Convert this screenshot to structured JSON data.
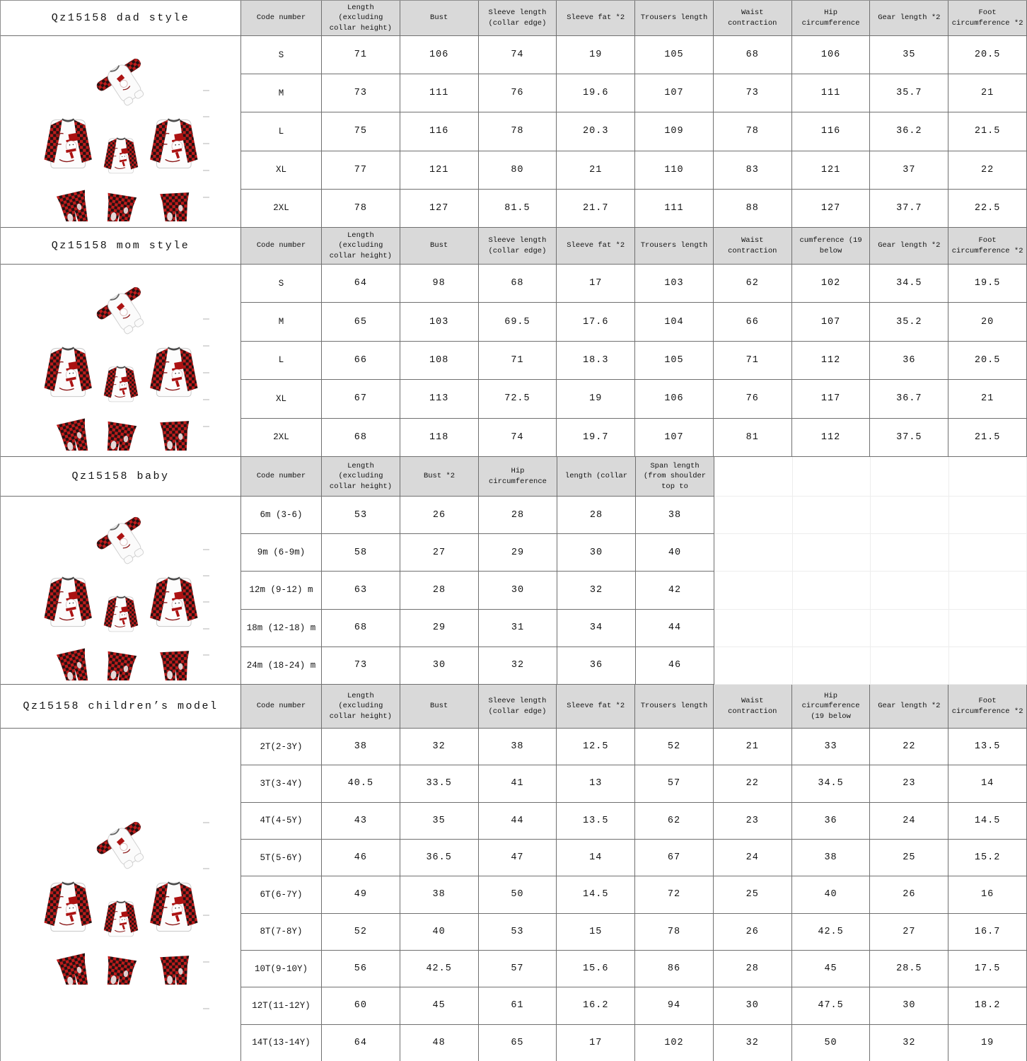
{
  "sections": [
    {
      "id": "dad",
      "title": "Qz15158 dad style",
      "columns": [
        "Code number",
        "Length (excluding collar height)",
        "Bust",
        "Sleeve length (collar edge)",
        "Sleeve fat *2",
        "Trousers length",
        "Waist contraction",
        "Hip circumference",
        "Gear length *2",
        "Foot circumference *2"
      ],
      "rows": [
        [
          "S",
          "71",
          "106",
          "74",
          "19",
          "105",
          "68",
          "106",
          "35",
          "20.5"
        ],
        [
          "M",
          "73",
          "111",
          "76",
          "19.6",
          "107",
          "73",
          "111",
          "35.7",
          "21"
        ],
        [
          "L",
          "75",
          "116",
          "78",
          "20.3",
          "109",
          "78",
          "116",
          "36.2",
          "21.5"
        ],
        [
          "XL",
          "77",
          "121",
          "80",
          "21",
          "110",
          "83",
          "121",
          "37",
          "22"
        ],
        [
          "2XL",
          "78",
          "127",
          "81.5",
          "21.7",
          "111",
          "88",
          "127",
          "37.7",
          "22.5"
        ]
      ]
    },
    {
      "id": "mom",
      "title": "Qz15158 mom style",
      "columns": [
        "Code number",
        "Length (excluding collar height)",
        "Bust",
        "Sleeve length (collar edge)",
        "Sleeve fat *2",
        "Trousers length",
        "Waist contraction",
        "cumference (19 below",
        "Gear length *2",
        "Foot circumference *2"
      ],
      "rows": [
        [
          "S",
          "64",
          "98",
          "68",
          "17",
          "103",
          "62",
          "102",
          "34.5",
          "19.5"
        ],
        [
          "M",
          "65",
          "103",
          "69.5",
          "17.6",
          "104",
          "66",
          "107",
          "35.2",
          "20"
        ],
        [
          "L",
          "66",
          "108",
          "71",
          "18.3",
          "105",
          "71",
          "112",
          "36",
          "20.5"
        ],
        [
          "XL",
          "67",
          "113",
          "72.5",
          "19",
          "106",
          "76",
          "117",
          "36.7",
          "21"
        ],
        [
          "2XL",
          "68",
          "118",
          "74",
          "19.7",
          "107",
          "81",
          "112",
          "37.5",
          "21.5"
        ]
      ]
    },
    {
      "id": "baby",
      "title": "Qz15158 baby",
      "columns": [
        "Code number",
        "Length (excluding collar height)",
        "Bust *2",
        "Hip circumference",
        "length (collar",
        "Span length (from shoulder top to"
      ],
      "rows": [
        [
          "6m (3-6)",
          "53",
          "26",
          "28",
          "28",
          "38"
        ],
        [
          "9m (6-9m)",
          "58",
          "27",
          "29",
          "30",
          "40"
        ],
        [
          "12m (9-12) m",
          "63",
          "28",
          "30",
          "32",
          "42"
        ],
        [
          "18m (12-18) m",
          "68",
          "29",
          "31",
          "34",
          "44"
        ],
        [
          "24m (18-24) m",
          "73",
          "30",
          "32",
          "36",
          "46"
        ]
      ]
    },
    {
      "id": "children",
      "title": "Qz15158 children’s model",
      "columns": [
        "Code number",
        "Length (excluding collar height)",
        "Bust",
        "Sleeve length (collar edge)",
        "Sleeve fat *2",
        "Trousers length",
        "Waist contraction",
        "Hip circumference (19 below",
        "Gear length *2",
        "Foot circumference *2"
      ],
      "rows": [
        [
          "2T(2-3Y)",
          "38",
          "32",
          "38",
          "12.5",
          "52",
          "21",
          "33",
          "22",
          "13.5"
        ],
        [
          "3T(3-4Y)",
          "40.5",
          "33.5",
          "41",
          "13",
          "57",
          "22",
          "34.5",
          "23",
          "14"
        ],
        [
          "4T(4-5Y)",
          "43",
          "35",
          "44",
          "13.5",
          "62",
          "23",
          "36",
          "24",
          "14.5"
        ],
        [
          "5T(5-6Y)",
          "46",
          "36.5",
          "47",
          "14",
          "67",
          "24",
          "38",
          "25",
          "15.2"
        ],
        [
          "6T(6-7Y)",
          "49",
          "38",
          "50",
          "14.5",
          "72",
          "25",
          "40",
          "26",
          "16"
        ],
        [
          "8T(7-8Y)",
          "52",
          "40",
          "53",
          "15",
          "78",
          "26",
          "42.5",
          "27",
          "16.7"
        ],
        [
          "10T(9-10Y)",
          "56",
          "42.5",
          "57",
          "15.6",
          "86",
          "28",
          "45",
          "28.5",
          "17.5"
        ],
        [
          "12T(11-12Y)",
          "60",
          "45",
          "61",
          "16.2",
          "94",
          "30",
          "47.5",
          "30",
          "18.2"
        ],
        [
          "14T(13-14Y)",
          "64",
          "48",
          "65",
          "17",
          "102",
          "32",
          "50",
          "32",
          "19"
        ]
      ]
    }
  ],
  "colors": {
    "header_bg": "#d9d9d9",
    "border": "#707070",
    "ghost_border": "#ededed",
    "plaid_red": "#bf1b1b",
    "plaid_black": "#241212",
    "print_red": "#ab1212"
  }
}
